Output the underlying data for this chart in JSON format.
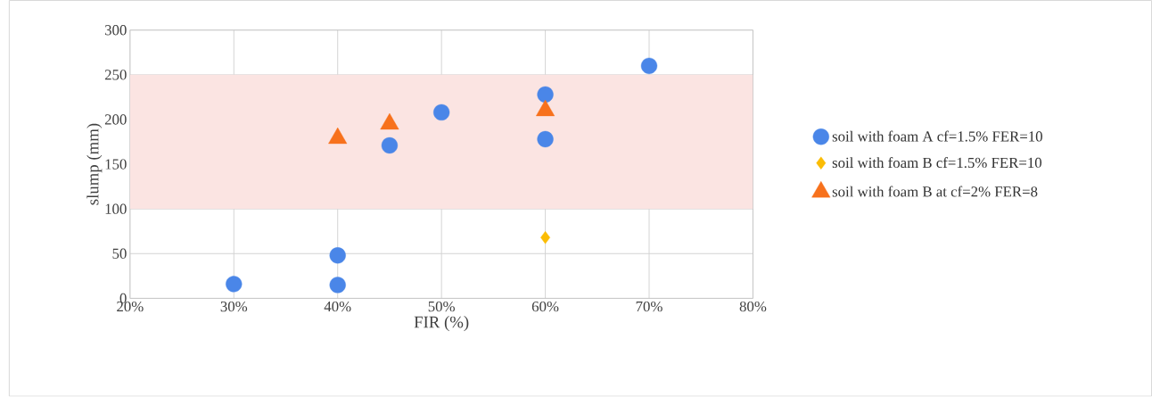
{
  "chart_data": {
    "type": "scatter",
    "xlabel": "FIR (%)",
    "ylabel": "slump (mm)",
    "xlim": [
      20,
      80
    ],
    "ylim": [
      0,
      300
    ],
    "xticks": [
      {
        "value": 20,
        "label": "20%"
      },
      {
        "value": 30,
        "label": "30%"
      },
      {
        "value": 40,
        "label": "40%"
      },
      {
        "value": 50,
        "label": "50%"
      },
      {
        "value": 60,
        "label": "60%"
      },
      {
        "value": 70,
        "label": "70%"
      },
      {
        "value": 80,
        "label": "80%"
      }
    ],
    "yticks": [
      0,
      50,
      100,
      150,
      200,
      250,
      300
    ],
    "grid": true,
    "legend": "right",
    "bands": [
      {
        "axis": "y",
        "from": 100,
        "to": 250,
        "color": "#fbe4e2"
      }
    ],
    "series": [
      {
        "name": "soil with foam A cf=1.5% FER=10",
        "color": "#4a86e8",
        "marker": "circle",
        "x": [
          30,
          40,
          40,
          45,
          50,
          60,
          60,
          70
        ],
        "values": [
          16,
          15,
          48,
          171,
          208,
          228,
          178,
          260
        ]
      },
      {
        "name": "soil with foam B cf=1.5% FER=10",
        "color": "#fbbc04",
        "marker": "diamond",
        "x": [
          60
        ],
        "values": [
          68
        ]
      },
      {
        "name": "soil with foam B at cf=2% FER=8",
        "color": "#f7711c",
        "marker": "triangle",
        "x": [
          40,
          45,
          60
        ],
        "values": [
          179,
          195,
          210
        ]
      }
    ]
  }
}
